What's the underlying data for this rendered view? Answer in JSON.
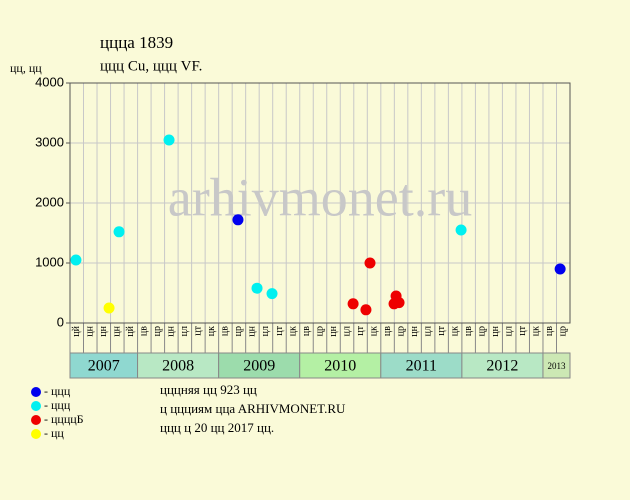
{
  "chart_data": {
    "type": "scatter",
    "title": "цццa 1839",
    "subtitle": "ццц Cu, ццц VF.",
    "y_label": "цц, цц",
    "watermark": "arhivmonet.ru",
    "ylim": [
      0,
      4000
    ],
    "yticks": [
      0,
      1000,
      2000,
      3000,
      4000
    ],
    "xlim": [
      0,
      37
    ],
    "grid": true,
    "columns": [
      "цй",
      "цн",
      "цн",
      "цн",
      "цй",
      "цв",
      "цр",
      "цн",
      "цл",
      "цт",
      "цк",
      "цв",
      "цр",
      "цн",
      "цл",
      "цт",
      "цк",
      "цв",
      "цр",
      "цн",
      "цл",
      "цт",
      "цк",
      "цв",
      "цр",
      "цн",
      "цл",
      "цт",
      "цк",
      "цв",
      "цр",
      "цн",
      "цл",
      "цт",
      "цк",
      "цв",
      "цр"
    ],
    "years": [
      {
        "label": "2007",
        "span": [
          0,
          5
        ],
        "color": "#8fd8d0"
      },
      {
        "label": "2008",
        "span": [
          5,
          11
        ],
        "color": "#b8e8c4"
      },
      {
        "label": "2009",
        "span": [
          11,
          17
        ],
        "color": "#9cdcac"
      },
      {
        "label": "2010",
        "span": [
          17,
          23
        ],
        "color": "#b4f0a4"
      },
      {
        "label": "2011",
        "span": [
          23,
          29
        ],
        "color": "#9cdcc8"
      },
      {
        "label": "2012",
        "span": [
          29,
          35
        ],
        "color": "#b8e8c4"
      },
      {
        "label": "2013",
        "span": [
          35,
          37
        ],
        "color": "#cce8b4"
      }
    ],
    "series": [
      {
        "name": "- ццц",
        "color": "#0000ee",
        "x": [
          12.43,
          36.27
        ],
        "values": [
          1720,
          900
        ]
      },
      {
        "name": "- ццц",
        "color": "#00f0f0",
        "x": [
          0.44,
          3.63,
          7.33,
          13.84,
          14.95,
          28.94
        ],
        "values": [
          1050,
          1520,
          3050,
          580,
          490,
          1550
        ]
      },
      {
        "name": "- ццццБ",
        "color": "#ee0000",
        "x": [
          20.95,
          21.9,
          22.2,
          23.98,
          24.13,
          24.35
        ],
        "values": [
          320,
          220,
          1000,
          320,
          450,
          340
        ]
      },
      {
        "name": "- цц",
        "color": "#ffff00",
        "x": [
          2.89
        ],
        "values": [
          250
        ]
      }
    ],
    "notes": [
      "цццняя цц 923 цц",
      "ц ццциям ццa ARHIVMONET.RU",
      "ццц ц 20 цц 2017 цц."
    ]
  }
}
